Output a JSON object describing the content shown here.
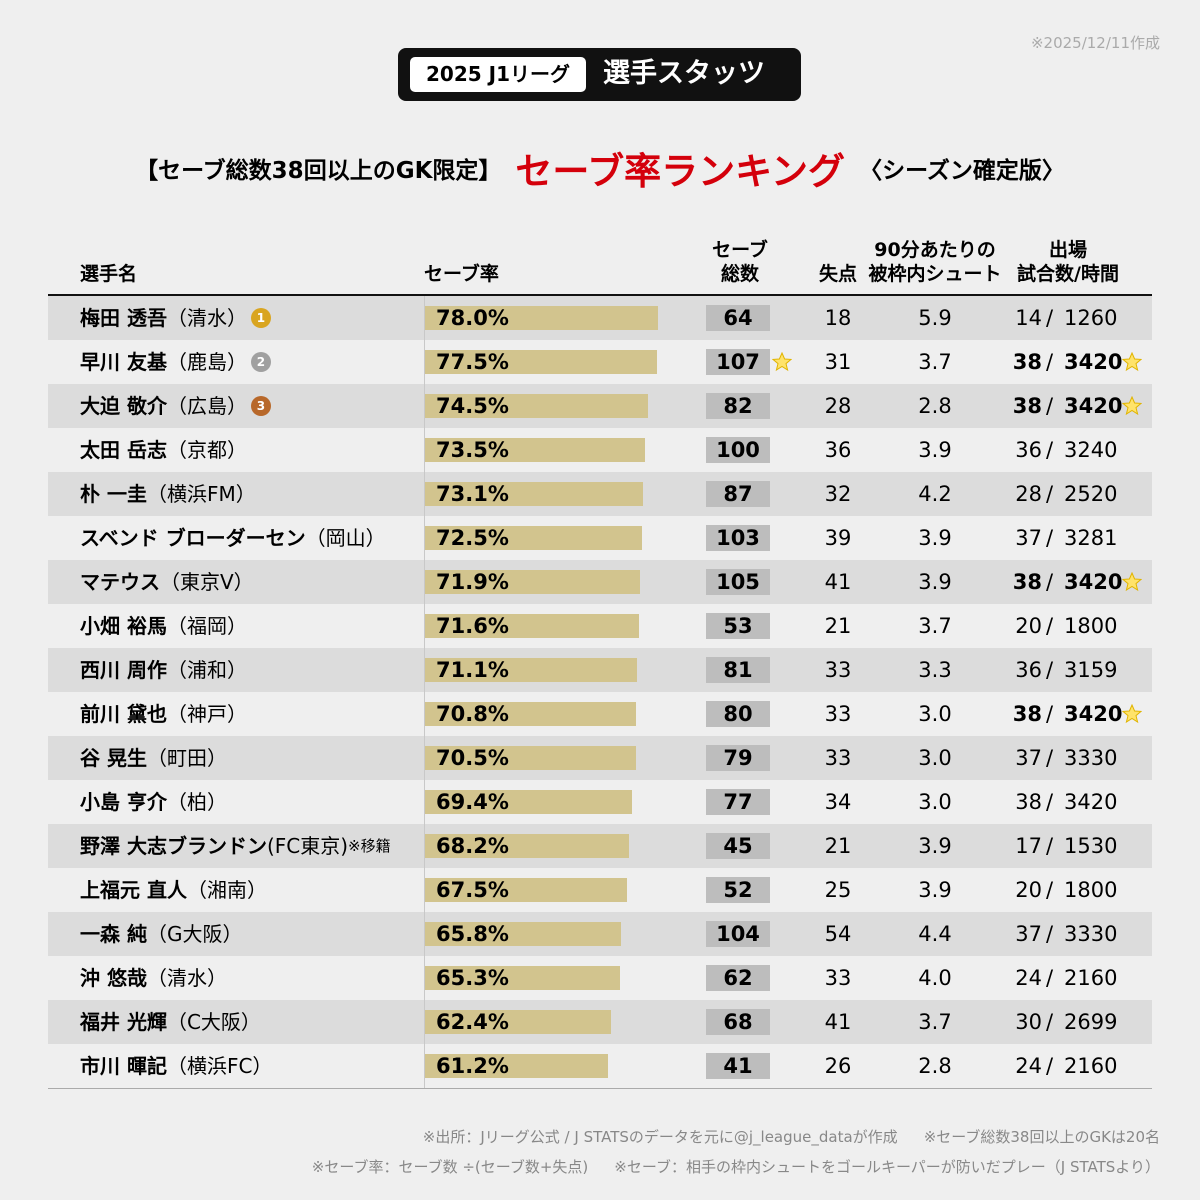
{
  "date": "※2025/12/11作成",
  "header": {
    "league": "2025 J1リーグ",
    "title": "選手スタッツ"
  },
  "subtitle": {
    "condition": "【セーブ総数38回以上のGK限定】",
    "main": "セーブ率ランキング",
    "edition": "〈シーズン確定版〉"
  },
  "table": {
    "columns": {
      "name": "選手名",
      "save_rate": "セーブ率",
      "saves": [
        "セーブ",
        "総数"
      ],
      "goals": "失点",
      "shots": [
        "90分あたりの",
        "被枠内シュート"
      ],
      "apps": [
        "出場",
        "試合数/時間"
      ]
    },
    "separator": "/",
    "rows": [
      {
        "name": "梅田 透吾",
        "team": "（清水）",
        "medal": 1,
        "save_rate": "78.0%",
        "saves": "64",
        "goals": "18",
        "shots": "5.9",
        "apps": "14",
        "minutes": "1260"
      },
      {
        "name": "早川 友基",
        "team": "（鹿島）",
        "medal": 2,
        "save_rate": "77.5%",
        "saves": "107",
        "saves_star": true,
        "goals": "31",
        "shots": "3.7",
        "apps": "38",
        "minutes": "3420",
        "full_time": true
      },
      {
        "name": "大迫 敬介",
        "team": "（広島）",
        "medal": 3,
        "save_rate": "74.5%",
        "saves": "82",
        "goals": "28",
        "shots": "2.8",
        "apps": "38",
        "minutes": "3420",
        "full_time": true
      },
      {
        "name": "太田 岳志",
        "team": "（京都）",
        "save_rate": "73.5%",
        "saves": "100",
        "goals": "36",
        "shots": "3.9",
        "apps": "36",
        "minutes": "3240"
      },
      {
        "name": "朴 一圭",
        "team": "（横浜FM）",
        "save_rate": "73.1%",
        "saves": "87",
        "goals": "32",
        "shots": "4.2",
        "apps": "28",
        "minutes": "2520"
      },
      {
        "name": "スベンド ブローダーセン",
        "team": "（岡山）",
        "save_rate": "72.5%",
        "saves": "103",
        "goals": "39",
        "shots": "3.9",
        "apps": "37",
        "minutes": "3281"
      },
      {
        "name": "マテウス",
        "team": "（東京V）",
        "save_rate": "71.9%",
        "saves": "105",
        "goals": "41",
        "shots": "3.9",
        "apps": "38",
        "minutes": "3420",
        "full_time": true
      },
      {
        "name": "小畑 裕馬",
        "team": "（福岡）",
        "save_rate": "71.6%",
        "saves": "53",
        "goals": "21",
        "shots": "3.7",
        "apps": "20",
        "minutes": "1800"
      },
      {
        "name": "西川 周作",
        "team": "（浦和）",
        "save_rate": "71.1%",
        "saves": "81",
        "goals": "33",
        "shots": "3.3",
        "apps": "36",
        "minutes": "3159"
      },
      {
        "name": "前川 黛也",
        "team": "（神戸）",
        "save_rate": "70.8%",
        "saves": "80",
        "goals": "33",
        "shots": "3.0",
        "apps": "38",
        "minutes": "3420",
        "full_time": true
      },
      {
        "name": "谷 晃生",
        "team": "（町田）",
        "save_rate": "70.5%",
        "saves": "79",
        "goals": "33",
        "shots": "3.0",
        "apps": "37",
        "minutes": "3330"
      },
      {
        "name": "小島 亨介",
        "team": "（柏）",
        "save_rate": "69.4%",
        "saves": "77",
        "goals": "34",
        "shots": "3.0",
        "apps": "38",
        "minutes": "3420"
      },
      {
        "name": "野澤 大志ブランドン",
        "team": "(FC東京)",
        "note": "※移籍",
        "save_rate": "68.2%",
        "saves": "45",
        "goals": "21",
        "shots": "3.9",
        "apps": "17",
        "minutes": "1530"
      },
      {
        "name": "上福元 直人",
        "team": "（湘南）",
        "save_rate": "67.5%",
        "saves": "52",
        "goals": "25",
        "shots": "3.9",
        "apps": "20",
        "minutes": "1800"
      },
      {
        "name": "一森 純",
        "team": "（G大阪）",
        "save_rate": "65.8%",
        "saves": "104",
        "goals": "54",
        "shots": "4.4",
        "apps": "37",
        "minutes": "3330"
      },
      {
        "name": "沖 悠哉",
        "team": "（清水）",
        "save_rate": "65.3%",
        "saves": "62",
        "goals": "33",
        "shots": "4.0",
        "apps": "24",
        "minutes": "2160"
      },
      {
        "name": "福井 光輝",
        "team": "（C大阪）",
        "save_rate": "62.4%",
        "saves": "68",
        "goals": "41",
        "shots": "3.7",
        "apps": "30",
        "minutes": "2699"
      },
      {
        "name": "市川 暉記",
        "team": "（横浜FC）",
        "save_rate": "61.2%",
        "saves": "41",
        "goals": "26",
        "shots": "2.8",
        "apps": "24",
        "minutes": "2160"
      }
    ]
  },
  "footnotes": [
    [
      "※出所：Jリーグ公式 / J STATSのデータを元に@j_league_dataが作成",
      "※セーブ総数38回以上のGKは20名"
    ],
    [
      "※セーブ率：セーブ数 ÷(セーブ数+失点)",
      "※セーブ：相手の枠内シュートをゴールキーパーが防いだプレー（J STATSより）"
    ]
  ]
}
